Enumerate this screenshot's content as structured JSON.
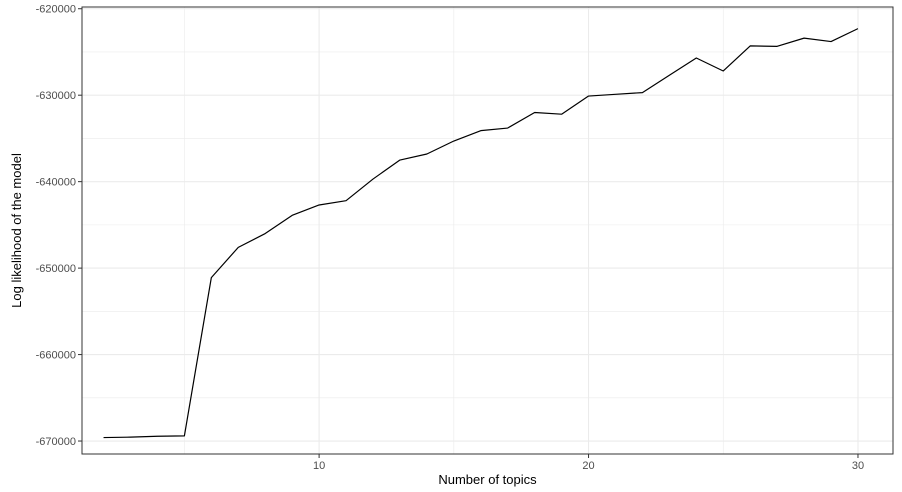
{
  "chart_data": {
    "type": "line",
    "title": "",
    "xlabel": "Number of topics",
    "ylabel": "Log likelihood of the model",
    "xlim": [
      1.2,
      31.3
    ],
    "ylim": [
      -671500,
      -619800
    ],
    "x_ticks": [
      10,
      20,
      30
    ],
    "x_tick_labels": [
      "10",
      "20",
      "30"
    ],
    "y_ticks": [
      -670000,
      -660000,
      -650000,
      -640000,
      -630000,
      -620000
    ],
    "y_tick_labels": [
      "-670000",
      "-660000",
      "-650000",
      "-640000",
      "-630000",
      "-620000"
    ],
    "grid": true,
    "theme": "bw",
    "line_color": "#000000",
    "grid_color": "#ebebeb",
    "panel_border_color": "#333333",
    "series": [
      {
        "x": [
          2,
          3,
          4,
          5,
          6,
          7,
          8,
          9,
          10,
          11,
          12,
          13,
          14,
          15,
          16,
          17,
          18,
          19,
          20,
          21,
          22,
          23,
          24,
          25,
          26,
          27,
          28,
          29,
          30
        ],
        "values": [
          -669600,
          -669550,
          -669450,
          -669400,
          -651100,
          -647600,
          -646000,
          -643900,
          -642700,
          -642200,
          -639700,
          -637500,
          -636800,
          -635300,
          -634100,
          -633800,
          -632000,
          -632200,
          -630100,
          -629900,
          -629700,
          -627700,
          -625700,
          -627200,
          -624300,
          -624350,
          -623400,
          -623800,
          -622300
        ]
      }
    ]
  }
}
